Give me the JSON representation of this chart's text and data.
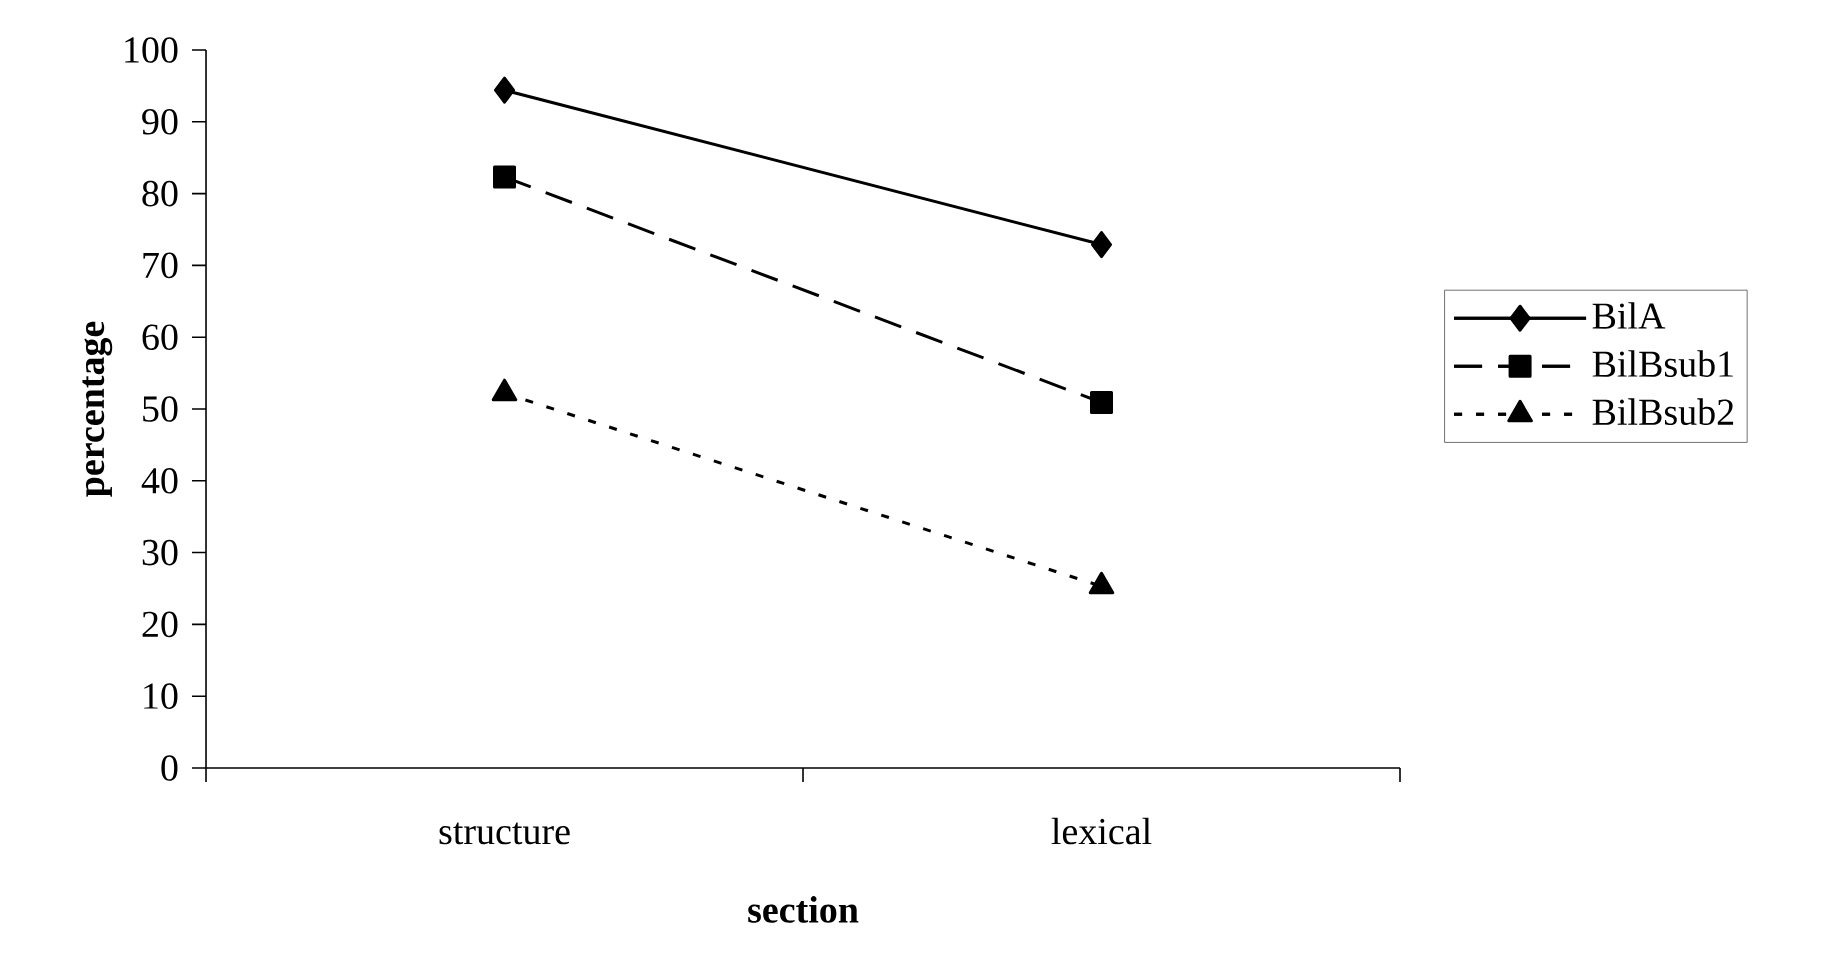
{
  "chart_data": {
    "type": "line",
    "xlabel": "section",
    "ylabel": "percentage",
    "categories": [
      "structure",
      "lexical"
    ],
    "series": [
      {
        "name": "BilA",
        "color": "#000000",
        "values": [
          94.4,
          72.9
        ],
        "marker": "diamond",
        "line_style": "solid"
      },
      {
        "name": "BilBsub1",
        "color": "#000000",
        "values": [
          82.3,
          50.9
        ],
        "marker": "square",
        "line_style": "dashed"
      },
      {
        "name": "BilBsub2",
        "color": "#000000",
        "values": [
          52.2,
          25.3
        ],
        "marker": "triangle",
        "line_style": "dotted"
      }
    ],
    "ylim": [
      0,
      100
    ],
    "yticks": [
      0,
      10,
      20,
      30,
      40,
      50,
      60,
      70,
      80,
      90,
      100
    ],
    "grid": false,
    "legend": "right"
  }
}
